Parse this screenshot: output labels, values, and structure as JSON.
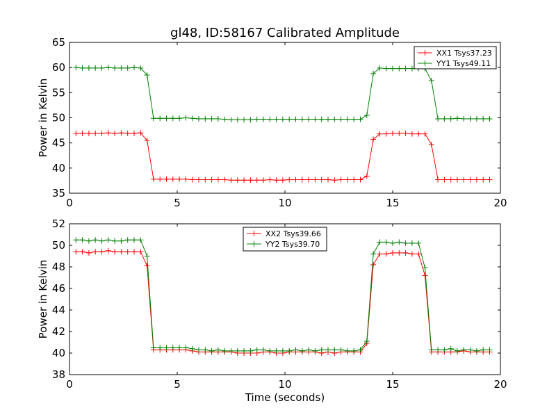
{
  "chart_data": [
    {
      "type": "line",
      "title": "gl48, ID:58167 Calibrated Amplitude",
      "xlabel": "",
      "ylabel": "Power in Kelvin",
      "xlim": [
        0,
        20
      ],
      "ylim": [
        35,
        65
      ],
      "xticks": [
        0,
        5,
        10,
        15,
        20
      ],
      "yticks": [
        35,
        40,
        45,
        50,
        55,
        60,
        65
      ],
      "grid": false,
      "legend_position": "top-right",
      "x": [
        0.3,
        0.6,
        0.9,
        1.2,
        1.5,
        1.8,
        2.1,
        2.4,
        2.7,
        3.0,
        3.3,
        3.6,
        3.9,
        4.2,
        4.5,
        4.8,
        5.1,
        5.4,
        5.7,
        6.0,
        6.3,
        6.6,
        6.9,
        7.2,
        7.5,
        7.8,
        8.1,
        8.4,
        8.7,
        9.0,
        9.3,
        9.6,
        9.9,
        10.2,
        10.5,
        10.8,
        11.1,
        11.4,
        11.7,
        12.0,
        12.3,
        12.6,
        12.9,
        13.2,
        13.5,
        13.8,
        14.1,
        14.4,
        14.7,
        15.0,
        15.3,
        15.6,
        15.9,
        16.2,
        16.5,
        16.8,
        17.1,
        17.4,
        17.7,
        18.0,
        18.3,
        18.6,
        18.9,
        19.2,
        19.5
      ],
      "series": [
        {
          "name": "XX1 Tsys37.23",
          "color": "#ff0000",
          "values": [
            46.9,
            46.9,
            46.9,
            46.9,
            46.9,
            47.0,
            46.9,
            47.0,
            46.9,
            46.9,
            47.0,
            45.5,
            37.8,
            37.8,
            37.8,
            37.8,
            37.8,
            37.8,
            37.7,
            37.7,
            37.7,
            37.7,
            37.7,
            37.7,
            37.6,
            37.6,
            37.6,
            37.6,
            37.6,
            37.6,
            37.7,
            37.6,
            37.6,
            37.7,
            37.7,
            37.7,
            37.7,
            37.7,
            37.7,
            37.7,
            37.6,
            37.7,
            37.7,
            37.7,
            37.7,
            38.4,
            45.7,
            46.8,
            46.8,
            46.9,
            46.9,
            46.9,
            46.8,
            46.8,
            46.8,
            44.7,
            37.7,
            37.7,
            37.7,
            37.7,
            37.7,
            37.7,
            37.7,
            37.7,
            37.7
          ]
        },
        {
          "name": "YY1 Tsys49.11",
          "color": "#008000",
          "values": [
            60.0,
            59.9,
            59.9,
            59.9,
            59.9,
            60.0,
            59.9,
            59.9,
            59.9,
            60.0,
            59.9,
            58.5,
            49.9,
            49.9,
            49.9,
            49.9,
            49.9,
            50.0,
            49.9,
            49.8,
            49.8,
            49.8,
            49.8,
            49.7,
            49.6,
            49.6,
            49.6,
            49.6,
            49.7,
            49.7,
            49.7,
            49.7,
            49.7,
            49.7,
            49.7,
            49.7,
            49.7,
            49.7,
            49.7,
            49.7,
            49.7,
            49.7,
            49.7,
            49.7,
            49.7,
            50.5,
            58.8,
            59.9,
            59.8,
            59.8,
            59.8,
            59.8,
            59.8,
            59.8,
            59.8,
            57.4,
            49.8,
            49.8,
            49.8,
            49.9,
            49.8,
            49.8,
            49.8,
            49.8,
            49.8
          ]
        }
      ]
    },
    {
      "type": "line",
      "title": "",
      "xlabel": "Time (seconds)",
      "ylabel": "Power in Kelvin",
      "xlim": [
        0,
        20
      ],
      "ylim": [
        38,
        52
      ],
      "xticks": [
        0,
        5,
        10,
        15,
        20
      ],
      "yticks": [
        38,
        40,
        42,
        44,
        46,
        48,
        50,
        52
      ],
      "grid": false,
      "legend_position": "top-center",
      "x": [
        0.3,
        0.6,
        0.9,
        1.2,
        1.5,
        1.8,
        2.1,
        2.4,
        2.7,
        3.0,
        3.3,
        3.6,
        3.9,
        4.2,
        4.5,
        4.8,
        5.1,
        5.4,
        5.7,
        6.0,
        6.3,
        6.6,
        6.9,
        7.2,
        7.5,
        7.8,
        8.1,
        8.4,
        8.7,
        9.0,
        9.3,
        9.6,
        9.9,
        10.2,
        10.5,
        10.8,
        11.1,
        11.4,
        11.7,
        12.0,
        12.3,
        12.6,
        12.9,
        13.2,
        13.5,
        13.8,
        14.1,
        14.4,
        14.7,
        15.0,
        15.3,
        15.6,
        15.9,
        16.2,
        16.5,
        16.8,
        17.1,
        17.4,
        17.7,
        18.0,
        18.3,
        18.6,
        18.9,
        19.2,
        19.5
      ],
      "series": [
        {
          "name": "XX2 Tsys39.66",
          "color": "#ff0000",
          "values": [
            49.4,
            49.4,
            49.3,
            49.4,
            49.4,
            49.5,
            49.4,
            49.4,
            49.4,
            49.4,
            49.4,
            48.1,
            40.3,
            40.3,
            40.3,
            40.3,
            40.3,
            40.3,
            40.2,
            40.1,
            40.1,
            40.1,
            40.1,
            40.1,
            40.1,
            40.0,
            40.0,
            40.0,
            40.0,
            40.1,
            40.1,
            40.0,
            40.0,
            40.1,
            40.1,
            40.1,
            40.1,
            40.1,
            40.0,
            40.1,
            40.0,
            40.1,
            40.1,
            40.1,
            40.1,
            40.9,
            48.2,
            49.2,
            49.2,
            49.3,
            49.3,
            49.3,
            49.2,
            49.2,
            47.2,
            40.1,
            40.1,
            40.1,
            40.1,
            40.1,
            40.2,
            40.1,
            40.1,
            40.1,
            40.1
          ]
        },
        {
          "name": "YY2 Tsys39.70",
          "color": "#008000",
          "values": [
            50.5,
            50.5,
            50.4,
            50.5,
            50.4,
            50.5,
            50.4,
            50.4,
            50.5,
            50.5,
            50.5,
            49.0,
            40.5,
            40.5,
            40.5,
            40.5,
            40.5,
            40.5,
            40.4,
            40.3,
            40.3,
            40.2,
            40.3,
            40.2,
            40.2,
            40.2,
            40.2,
            40.2,
            40.3,
            40.3,
            40.2,
            40.2,
            40.2,
            40.2,
            40.3,
            40.2,
            40.3,
            40.2,
            40.3,
            40.3,
            40.3,
            40.3,
            40.2,
            40.2,
            40.3,
            41.1,
            49.2,
            50.3,
            50.3,
            50.2,
            50.3,
            50.2,
            50.2,
            50.2,
            47.9,
            40.3,
            40.3,
            40.3,
            40.4,
            40.2,
            40.3,
            40.3,
            40.2,
            40.3,
            40.3
          ]
        }
      ]
    }
  ]
}
